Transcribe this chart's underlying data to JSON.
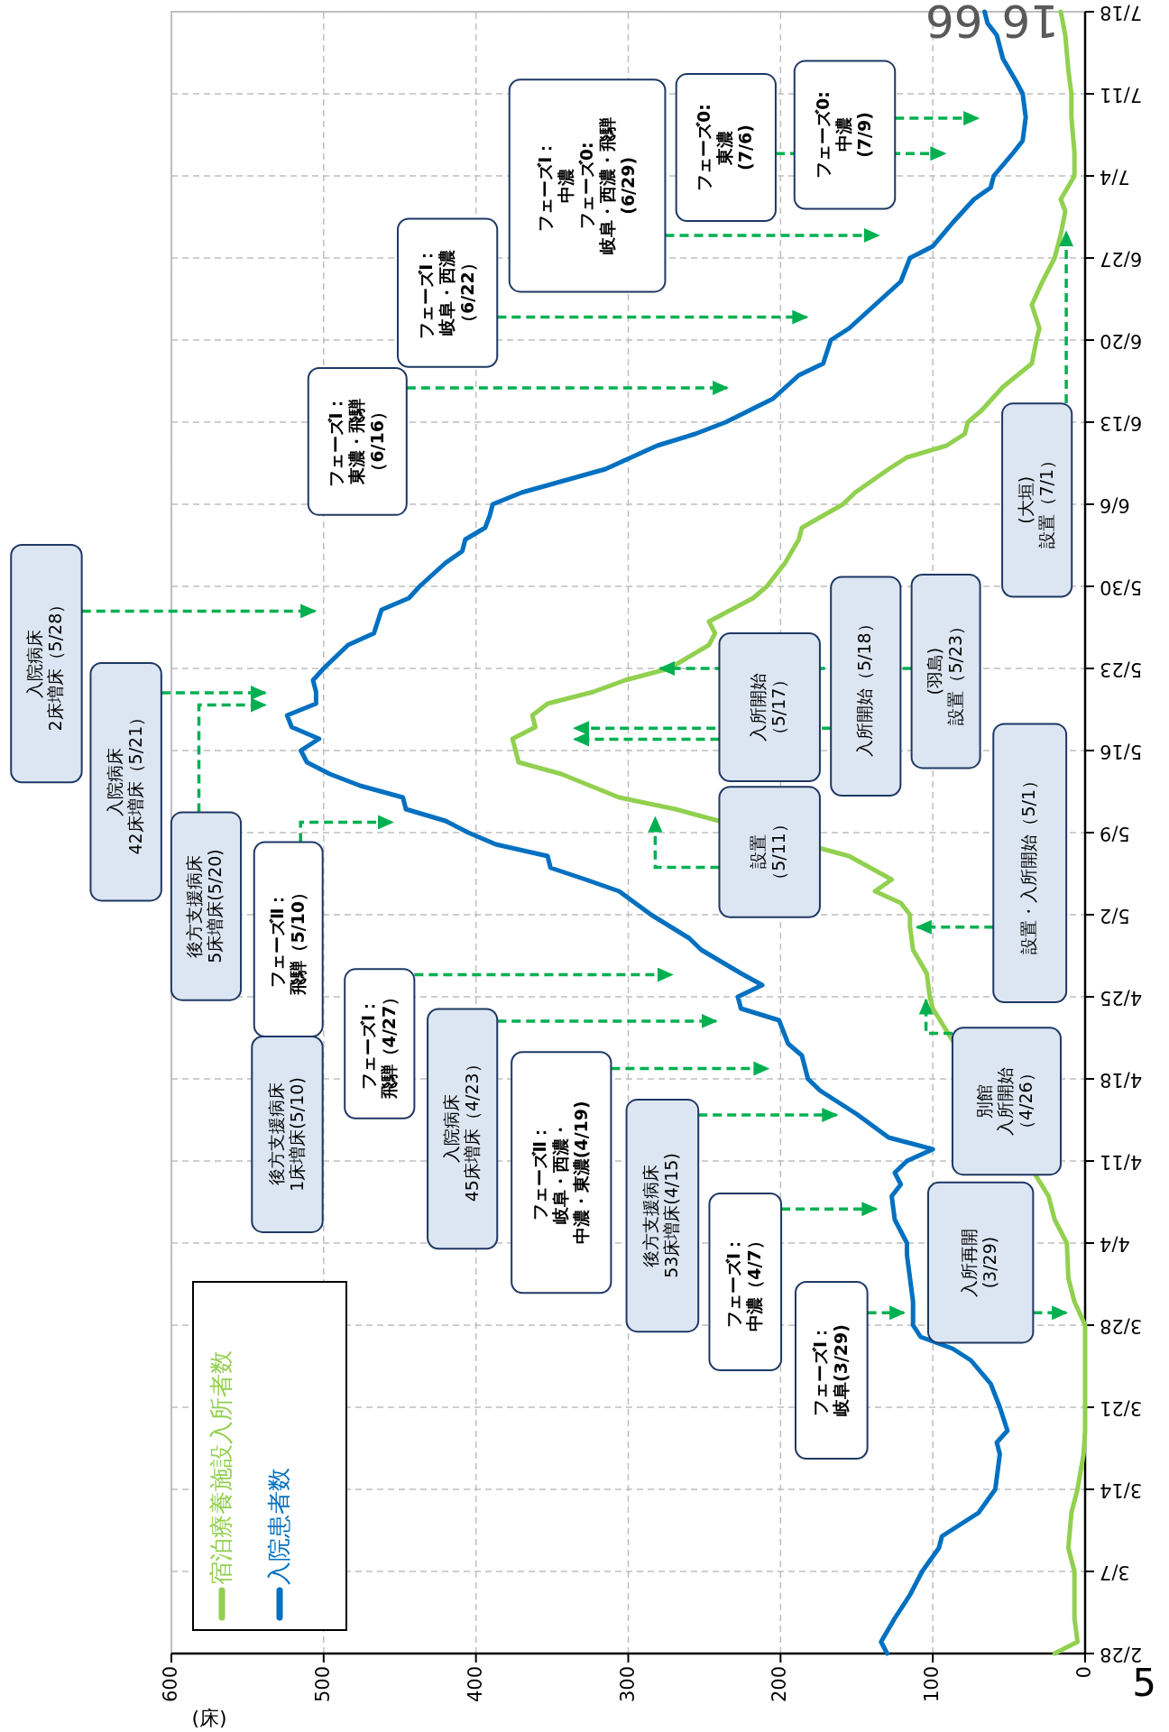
{
  "chart_data": {
    "type": "line",
    "orientation": "horizontal",
    "xlabel": "(床)",
    "ylim": [
      "--02-28",
      "--07-18"
    ],
    "yticks": [
      {
        "value": "--02-28",
        "label": "2/28"
      },
      {
        "value": "--03-07",
        "label": "3/7"
      },
      {
        "value": "--03-14",
        "label": "3/14"
      },
      {
        "value": "--03-21",
        "label": "3/21"
      },
      {
        "value": "--03-28",
        "label": "3/28"
      },
      {
        "value": "--04-04",
        "label": "4/4"
      },
      {
        "value": "--04-11",
        "label": "4/11"
      },
      {
        "value": "--04-18",
        "label": "4/18"
      },
      {
        "value": "--04-25",
        "label": "4/25"
      },
      {
        "value": "--05-02",
        "label": "5/2"
      },
      {
        "value": "--05-09",
        "label": "5/9"
      },
      {
        "value": "--05-16",
        "label": "5/16"
      },
      {
        "value": "--05-23",
        "label": "5/23"
      },
      {
        "value": "--05-30",
        "label": "5/30"
      },
      {
        "value": "--06-06",
        "label": "6/6"
      },
      {
        "value": "--06-13",
        "label": "6/13"
      },
      {
        "value": "--06-20",
        "label": "6/20"
      },
      {
        "value": "--06-27",
        "label": "6/27"
      },
      {
        "value": "--07-04",
        "label": "7/4"
      },
      {
        "value": "--07-11",
        "label": "7/11"
      },
      {
        "value": "--07-18",
        "label": "7/18"
      }
    ],
    "xlim": [
      600,
      0
    ],
    "xticks": [
      600,
      500,
      400,
      300,
      200,
      100,
      0
    ],
    "grid": true,
    "legend": "bottom left",
    "series": [
      {
        "name": "宿泊療養施設入所者数",
        "color": "#92d050",
        "x": [
          "--02-28",
          "--03-01",
          "--03-03",
          "--03-07",
          "--03-09",
          "--03-12",
          "--03-14",
          "--03-17",
          "--03-19",
          "--03-28",
          "--03-30",
          "--04-01",
          "--04-04",
          "--04-06",
          "--04-08",
          "--04-24",
          "--04-25",
          "--04-27",
          "--04-29",
          "--05-01",
          "--05-02",
          "--05-03",
          "--05-04",
          "--05-05",
          "--05-07",
          "--05-11",
          "--05-12",
          "--05-14",
          "--05-15",
          "--05-16",
          "--05-17",
          "--05-18",
          "--05-19",
          "--05-20",
          "--05-21",
          "--05-22",
          "--05-23",
          "--05-25",
          "--05-26",
          "--05-27",
          "--05-29",
          "--05-30",
          "--06-01",
          "--06-03",
          "--06-04",
          "--06-06",
          "--06-07",
          "--06-09",
          "--06-10",
          "--06-11",
          "--06-12",
          "--06-13",
          "--06-14",
          "--06-16",
          "--06-18",
          "--06-20",
          "--06-21",
          "--06-23",
          "--06-25",
          "--06-27",
          "--06-29",
          "--07-01",
          "--07-02",
          "--07-04",
          "--07-06",
          "--07-09",
          "--07-11",
          "--07-13",
          "--07-16",
          "--07-18"
        ],
        "values": [
          20,
          5,
          7,
          7,
          11,
          9,
          5,
          1,
          0,
          0,
          7,
          11,
          12,
          20,
          24,
          100,
          102,
          104,
          113,
          115,
          115,
          121,
          138,
          127,
          155,
          269,
          306,
          344,
          372,
          374,
          376,
          361,
          363,
          353,
          323,
          302,
          273,
          247,
          243,
          247,
          218,
          209,
          197,
          188,
          186,
          159,
          151,
          129,
          117,
          91,
          79,
          77,
          68,
          54,
          35,
          32,
          30,
          35,
          28,
          20,
          16,
          13,
          16,
          7,
          7,
          9,
          9,
          11,
          13,
          16
        ],
        "value_labels": [
          null,
          null,
          null,
          null,
          null,
          null,
          null,
          null,
          null,
          null,
          null,
          null,
          null,
          null,
          null,
          null,
          null,
          null,
          null,
          null,
          null,
          null,
          null,
          null,
          null,
          null,
          null,
          null,
          null,
          null,
          null,
          null,
          null,
          null,
          null,
          null,
          null,
          null,
          null,
          null,
          null,
          null,
          null,
          null,
          null,
          null,
          null,
          null,
          null,
          null,
          null,
          null,
          null,
          null,
          null,
          null,
          null,
          null,
          null,
          null,
          null,
          null,
          null,
          null,
          null,
          null,
          null,
          null,
          null,
          "16"
        ]
      },
      {
        "name": "入院患者数",
        "color": "#0070c0",
        "x": [
          "--02-28",
          "--03-01",
          "--03-03",
          "--03-05",
          "--03-07",
          "--03-09",
          "--03-10",
          "--03-12",
          "--03-14",
          "--03-17",
          "--03-18",
          "--03-19",
          "--03-21",
          "--03-23",
          "--03-25",
          "--03-26",
          "--03-27",
          "--03-28",
          "--03-30",
          "--04-01",
          "--04-03",
          "--04-04",
          "--04-06",
          "--04-08",
          "--04-09",
          "--04-10",
          "--04-11",
          "--04-12",
          "--04-13",
          "--04-15",
          "--04-17",
          "--04-18",
          "--04-20",
          "--04-21",
          "--04-23",
          "--04-24",
          "--04-25",
          "--04-26",
          "--04-27",
          "--04-29",
          "--04-30",
          "--05-02",
          "--05-04",
          "--05-05",
          "--05-06",
          "--05-07",
          "--05-08",
          "--05-09",
          "--05-10",
          "--05-11",
          "--05-12",
          "--05-13",
          "--05-14",
          "--05-15",
          "--05-16",
          "--05-17",
          "--05-18",
          "--05-19",
          "--05-20",
          "--05-21",
          "--05-22",
          "--05-23",
          "--05-25",
          "--05-26",
          "--05-28",
          "--05-29",
          "--05-30",
          "--06-01",
          "--06-02",
          "--06-03",
          "--06-04",
          "--06-05",
          "--06-06",
          "--06-07",
          "--06-09",
          "--06-11",
          "--06-12",
          "--06-13",
          "--06-15",
          "--06-17",
          "--06-18",
          "--06-20",
          "--06-21",
          "--06-23",
          "--06-25",
          "--06-27",
          "--06-28",
          "--06-30",
          "--07-02",
          "--07-03",
          "--07-04",
          "--07-06",
          "--07-07",
          "--07-09",
          "--07-11",
          "--07-12",
          "--07-14",
          "--07-16",
          "--07-17",
          "--07-18"
        ],
        "values": [
          130,
          134,
          125,
          115,
          107,
          96,
          94,
          70,
          59,
          56,
          58,
          51,
          56,
          62,
          75,
          87,
          108,
          113,
          113,
          115,
          117,
          117,
          125,
          127,
          121,
          125,
          117,
          100,
          129,
          150,
          174,
          182,
          186,
          195,
          201,
          226,
          228,
          212,
          226,
          252,
          260,
          285,
          306,
          328,
          351,
          353,
          387,
          405,
          420,
          446,
          448,
          476,
          496,
          511,
          515,
          503,
          521,
          524,
          505,
          505,
          507,
          500,
          484,
          467,
          462,
          444,
          437,
          420,
          409,
          407,
          394,
          391,
          389,
          370,
          315,
          281,
          256,
          236,
          205,
          188,
          172,
          167,
          155,
          138,
          121,
          115,
          100,
          87,
          73,
          62,
          60,
          47,
          41,
          39,
          41,
          45,
          54,
          58,
          64,
          66
        ],
        "value_labels": [
          null,
          null,
          null,
          null,
          null,
          null,
          null,
          null,
          null,
          null,
          null,
          null,
          null,
          null,
          null,
          null,
          null,
          null,
          null,
          null,
          null,
          null,
          null,
          null,
          null,
          null,
          null,
          null,
          null,
          null,
          null,
          null,
          null,
          null,
          null,
          null,
          null,
          null,
          null,
          null,
          null,
          null,
          null,
          null,
          null,
          null,
          null,
          null,
          null,
          null,
          null,
          null,
          null,
          null,
          null,
          null,
          null,
          null,
          null,
          null,
          null,
          null,
          null,
          null,
          null,
          null,
          null,
          null,
          null,
          null,
          null,
          null,
          null,
          null,
          null,
          null,
          null,
          null,
          null,
          null,
          null,
          null,
          null,
          null,
          null,
          null,
          null,
          null,
          null,
          null,
          null,
          null,
          null,
          null,
          null,
          null,
          null,
          null,
          null,
          "66"
        ]
      }
    ],
    "annotations": [
      "フェーズⅠ：岐阜(3/29)",
      "入所再開(3/29)",
      "フェーズⅠ：中濃（4/7）",
      "後方支援病床53床増床(4/15)",
      "フェーズⅡ：岐阜・西濃・中濃・東濃(4/19)",
      "入院病床45床増床（4/23）",
      "フェーズⅠ：飛騨（4/27）",
      "別館入所開始（4/26）",
      "後方支援病床1床増床(5/10)",
      "フェーズⅡ：飛騨（5/10）",
      "後方支援病床5床増床(5/20)",
      "入院病床42床増床（5/21）",
      "入院病床2床増床（5/28）",
      "フェーズⅠ：東濃・飛騨（6/16）",
      "フェーズⅠ：岐阜・西濃（6/22）",
      "フェーズⅠ：中濃フェーズ0:岐阜・西濃・飛騨(6/29)",
      "フェーズ0:東濃(7/6)",
      "フェーズ0:中濃(7/9)",
      "設置・入所開始（5/1）",
      "設置（5/11）",
      "入所開始（5/17）",
      "入所開始（5/18）",
      {
        "text": "(羽島)設置（5/23）",
        "x": 279,
        "y": "--05-23"
      },
      "(大垣)設置（7/1）",
      "5"
    ]
  }
}
